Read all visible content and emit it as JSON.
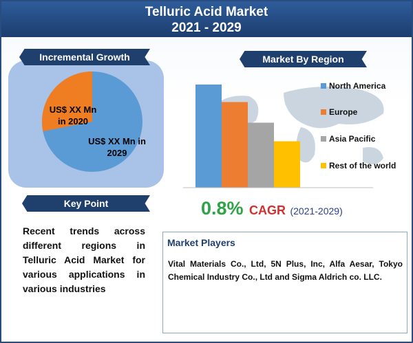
{
  "header": {
    "title_line1": "Telluric Acid Market",
    "title_line2": "2021 - 2029"
  },
  "incremental_growth": {
    "banner": "Incremental Growth",
    "label_2020": "US$ XX Mn in 2020",
    "label_2029": "US$ XX Mn in 2029",
    "colors": {
      "2020": "#ef7d22",
      "2029": "#5b9bd5"
    }
  },
  "key_point": {
    "banner": "Key Point",
    "text": "Recent trends across different regions in Telluric Acid Market for various applications in various industries"
  },
  "market_by_region": {
    "banner": "Market By Region",
    "legend": [
      {
        "name": "North America",
        "color": "#5b9bd5"
      },
      {
        "name": "Europe",
        "color": "#ed7d31"
      },
      {
        "name": "Asia Pacific",
        "color": "#a5a5a5"
      },
      {
        "name": "Rest of the world",
        "color": "#ffc000"
      }
    ]
  },
  "cagr": {
    "value": "0.8%",
    "label": "CAGR",
    "years": "(2021-2029)"
  },
  "market_players": {
    "title": "Market Players",
    "text": "Vital Materials Co., Ltd, 5N Plus, Inc, Alfa Aesar, Tokyo Chemical Industry Co., Ltd and Sigma Aldrich co. LLC."
  },
  "chart_data": {
    "type": "bar",
    "categories": [
      "North America",
      "Europe",
      "Asia Pacific",
      "Rest of the world"
    ],
    "values": [
      100,
      83,
      63,
      45
    ],
    "title": "",
    "xlabel": "",
    "ylabel": "",
    "ylim": [
      0,
      100
    ]
  }
}
